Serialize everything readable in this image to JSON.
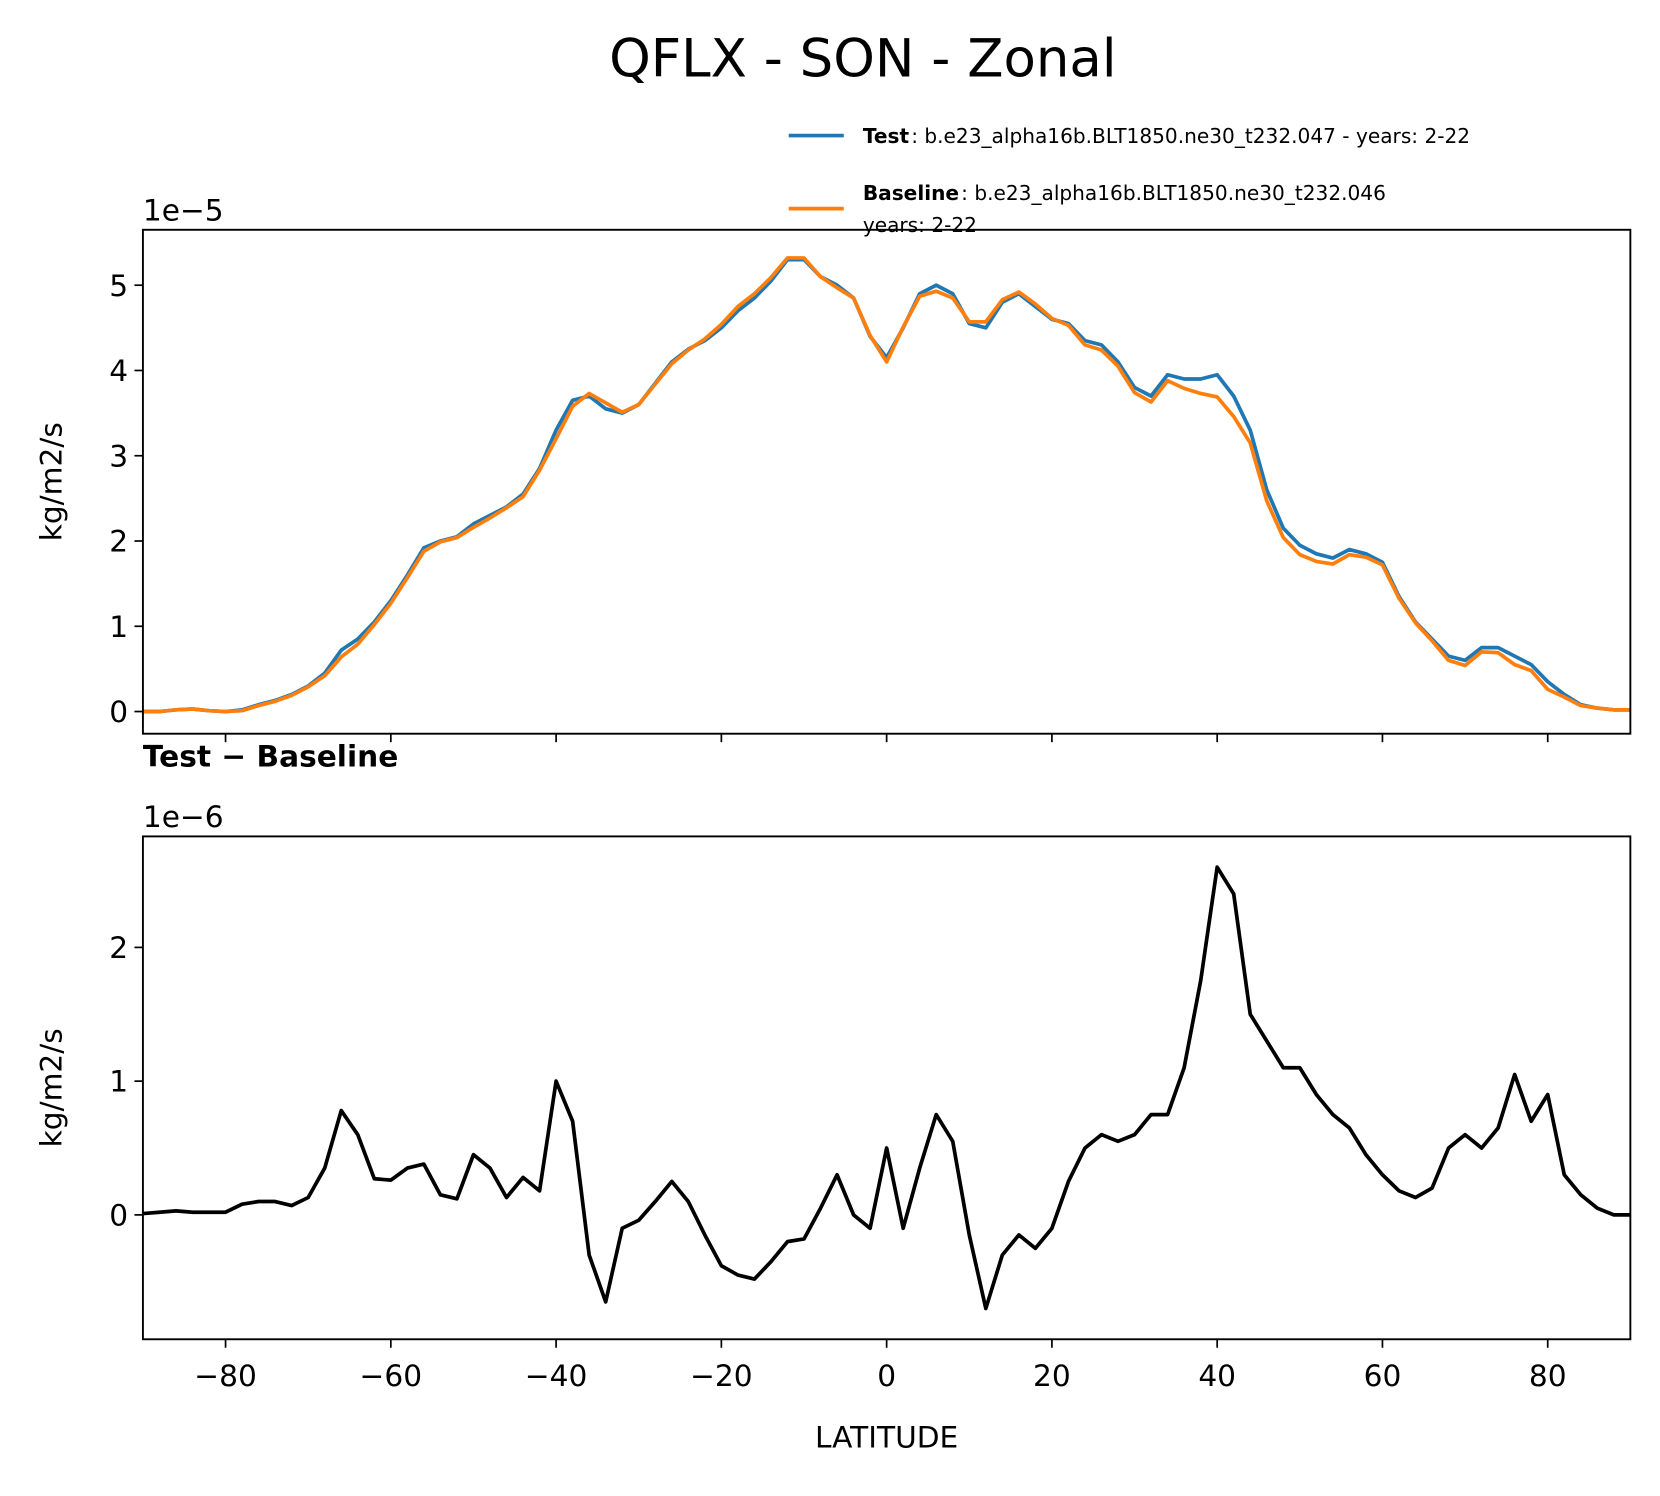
{
  "title": "QFLX - SON - Zonal",
  "chart_data": [
    {
      "type": "line",
      "offset_label": "1e−5",
      "ylabel": "kg/m2/s",
      "xlim": [
        -90,
        90
      ],
      "ylim": [
        -0.26,
        5.65
      ],
      "xticks": [
        -80,
        -60,
        -40,
        -20,
        0,
        20,
        40,
        60,
        80
      ],
      "yticks": [
        0,
        1,
        2,
        3,
        4,
        5
      ],
      "x": [
        -90,
        -88,
        -86,
        -84,
        -82,
        -80,
        -78,
        -76,
        -74,
        -72,
        -70,
        -68,
        -66,
        -64,
        -62,
        -60,
        -58,
        -56,
        -54,
        -52,
        -50,
        -48,
        -46,
        -44,
        -42,
        -40,
        -38,
        -36,
        -34,
        -32,
        -30,
        -28,
        -26,
        -24,
        -22,
        -20,
        -18,
        -16,
        -14,
        -12,
        -10,
        -8,
        -6,
        -4,
        -2,
        0,
        2,
        4,
        6,
        8,
        10,
        12,
        14,
        16,
        18,
        20,
        22,
        24,
        26,
        28,
        30,
        32,
        34,
        36,
        38,
        40,
        42,
        44,
        46,
        48,
        50,
        52,
        54,
        56,
        58,
        60,
        62,
        64,
        66,
        68,
        70,
        72,
        74,
        76,
        78,
        80,
        82,
        84,
        86,
        88,
        90
      ],
      "series": [
        {
          "name": "Test",
          "description": [
            ": b.e23_alpha16b.BLT1850.ne30_t232.047 - years: 2-22"
          ],
          "color": "#1f77b4",
          "values": [
            0,
            0,
            0.02,
            0.03,
            0.01,
            0,
            0.02,
            0.08,
            0.13,
            0.2,
            0.3,
            0.45,
            0.72,
            0.85,
            1.05,
            1.3,
            1.6,
            1.92,
            2.0,
            2.05,
            2.2,
            2.3,
            2.4,
            2.55,
            2.85,
            3.3,
            3.65,
            3.7,
            3.55,
            3.5,
            3.6,
            3.85,
            4.1,
            4.25,
            4.35,
            4.5,
            4.7,
            4.85,
            5.05,
            5.3,
            5.3,
            5.1,
            5.0,
            4.85,
            4.4,
            4.15,
            4.5,
            4.9,
            5.0,
            4.9,
            4.55,
            4.5,
            4.8,
            4.9,
            4.75,
            4.6,
            4.55,
            4.35,
            4.3,
            4.1,
            3.8,
            3.7,
            3.95,
            3.9,
            3.9,
            3.95,
            3.7,
            3.3,
            2.6,
            2.15,
            1.95,
            1.85,
            1.8,
            1.9,
            1.85,
            1.75,
            1.35,
            1.05,
            0.85,
            0.65,
            0.6,
            0.75,
            0.75,
            0.65,
            0.55,
            0.35,
            0.2,
            0.08,
            0.04,
            0.02,
            0.02
          ]
        },
        {
          "name": "Baseline",
          "description": [
            ": b.e23_alpha16b.BLT1850.ne30_t232.046",
            "years: 2-22"
          ],
          "color": "#ff7f0e",
          "values": [
            0,
            0,
            0.02,
            0.03,
            0.01,
            0,
            0.01,
            0.07,
            0.12,
            0.19,
            0.29,
            0.42,
            0.64,
            0.79,
            1.02,
            1.27,
            1.57,
            1.88,
            1.99,
            2.04,
            2.16,
            2.27,
            2.39,
            2.52,
            2.83,
            3.2,
            3.58,
            3.73,
            3.62,
            3.51,
            3.6,
            3.84,
            4.08,
            4.24,
            4.37,
            4.54,
            4.75,
            4.9,
            5.09,
            5.32,
            5.32,
            5.1,
            4.97,
            4.85,
            4.41,
            4.1,
            4.51,
            4.87,
            4.93,
            4.85,
            4.57,
            4.57,
            4.83,
            4.92,
            4.78,
            4.61,
            4.53,
            4.3,
            4.24,
            4.05,
            3.74,
            3.63,
            3.88,
            3.79,
            3.73,
            3.69,
            3.46,
            3.15,
            2.47,
            2.04,
            1.84,
            1.76,
            1.73,
            1.84,
            1.81,
            1.72,
            1.33,
            1.04,
            0.83,
            0.6,
            0.54,
            0.7,
            0.69,
            0.55,
            0.48,
            0.26,
            0.17,
            0.07,
            0.04,
            0.02,
            0.02
          ]
        }
      ]
    },
    {
      "type": "line",
      "title": "Test − Baseline",
      "offset_label": "1e−6",
      "ylabel": "kg/m2/s",
      "xlabel": "LATITUDE",
      "xlim": [
        -90,
        90
      ],
      "ylim": [
        -0.93,
        2.83
      ],
      "xticks": [
        {
          "value": -80,
          "label": "−80"
        },
        {
          "value": -60,
          "label": "−60"
        },
        {
          "value": -40,
          "label": "−40"
        },
        {
          "value": -20,
          "label": "−20"
        },
        0,
        20,
        40,
        60,
        80
      ],
      "yticks": [
        0,
        1,
        2
      ],
      "x": [
        -90,
        -88,
        -86,
        -84,
        -82,
        -80,
        -78,
        -76,
        -74,
        -72,
        -70,
        -68,
        -66,
        -64,
        -62,
        -60,
        -58,
        -56,
        -54,
        -52,
        -50,
        -48,
        -46,
        -44,
        -42,
        -40,
        -38,
        -36,
        -34,
        -32,
        -30,
        -28,
        -26,
        -24,
        -22,
        -20,
        -18,
        -16,
        -14,
        -12,
        -10,
        -8,
        -6,
        -4,
        -2,
        0,
        2,
        4,
        6,
        8,
        10,
        12,
        14,
        16,
        18,
        20,
        22,
        24,
        26,
        28,
        30,
        32,
        34,
        36,
        38,
        40,
        42,
        44,
        46,
        48,
        50,
        52,
        54,
        56,
        58,
        60,
        62,
        64,
        66,
        68,
        70,
        72,
        74,
        76,
        78,
        80,
        82,
        84,
        86,
        88,
        90
      ],
      "series": [
        {
          "color": "#000000",
          "values": [
            0.01,
            0.02,
            0.03,
            0.02,
            0.02,
            0.02,
            0.08,
            0.1,
            0.1,
            0.07,
            0.13,
            0.35,
            0.78,
            0.6,
            0.27,
            0.26,
            0.35,
            0.38,
            0.15,
            0.12,
            0.45,
            0.35,
            0.13,
            0.28,
            0.18,
            1.0,
            0.7,
            -0.3,
            -0.65,
            -0.1,
            -0.04,
            0.1,
            0.25,
            0.1,
            -0.15,
            -0.38,
            -0.45,
            -0.48,
            -0.35,
            -0.2,
            -0.18,
            0.05,
            0.3,
            0.0,
            -0.1,
            0.5,
            -0.1,
            0.35,
            0.75,
            0.55,
            -0.15,
            -0.7,
            -0.3,
            -0.15,
            -0.25,
            -0.1,
            0.25,
            0.5,
            0.6,
            0.55,
            0.6,
            0.75,
            0.75,
            1.1,
            1.75,
            2.6,
            2.4,
            1.5,
            1.3,
            1.1,
            1.1,
            0.9,
            0.75,
            0.65,
            0.45,
            0.3,
            0.18,
            0.13,
            0.2,
            0.5,
            0.6,
            0.5,
            0.65,
            1.05,
            0.7,
            0.9,
            0.3,
            0.15,
            0.05,
            0.0,
            0.0
          ]
        }
      ]
    }
  ]
}
